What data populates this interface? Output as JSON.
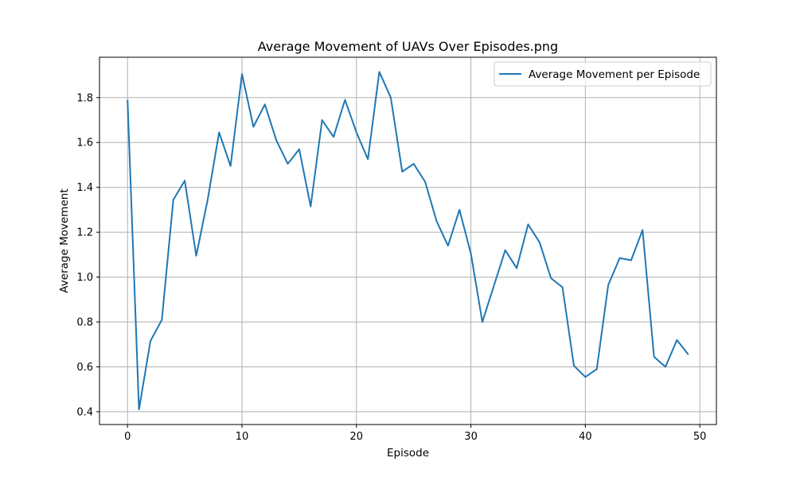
{
  "chart_data": {
    "type": "line",
    "title": "Average Movement of UAVs Over Episodes.png",
    "xlabel": "Episode",
    "ylabel": "Average Movement",
    "xlim": [
      -2.45,
      51.45
    ],
    "ylim": [
      0.343,
      1.98
    ],
    "xticks": [
      0,
      10,
      20,
      30,
      40,
      50
    ],
    "yticks": [
      0.4,
      0.6,
      0.8,
      1.0,
      1.2,
      1.4,
      1.6,
      1.8
    ],
    "xtick_labels": [
      "0",
      "10",
      "20",
      "30",
      "40",
      "50"
    ],
    "ytick_labels": [
      "0.4",
      "0.6",
      "0.8",
      "1.0",
      "1.2",
      "1.4",
      "1.6",
      "1.8"
    ],
    "grid": true,
    "legend_position": "top-right",
    "series": [
      {
        "name": "Average Movement per Episode",
        "color": "#1f77b4",
        "x": [
          0,
          1,
          2,
          3,
          4,
          5,
          6,
          7,
          8,
          9,
          10,
          11,
          12,
          13,
          14,
          15,
          16,
          17,
          18,
          19,
          20,
          21,
          22,
          23,
          24,
          25,
          26,
          27,
          28,
          29,
          30,
          31,
          32,
          33,
          34,
          35,
          36,
          37,
          38,
          39,
          40,
          41,
          42,
          43,
          44,
          45,
          46,
          47,
          48,
          49
        ],
        "values": [
          1.79,
          0.41,
          0.715,
          0.81,
          1.345,
          1.43,
          1.095,
          1.345,
          1.645,
          1.495,
          1.905,
          1.67,
          1.77,
          1.61,
          1.505,
          1.57,
          1.315,
          1.7,
          1.625,
          1.79,
          1.645,
          1.525,
          1.915,
          1.8,
          1.47,
          1.505,
          1.425,
          1.25,
          1.14,
          1.3,
          1.105,
          0.8,
          0.96,
          1.12,
          1.04,
          1.235,
          1.155,
          0.995,
          0.955,
          0.605,
          0.555,
          0.59,
          0.965,
          1.085,
          1.075,
          1.21,
          0.645,
          0.6,
          0.72,
          0.655
        ]
      }
    ]
  }
}
